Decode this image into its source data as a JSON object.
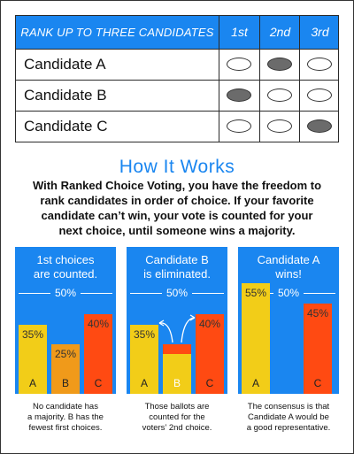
{
  "ballot": {
    "title": "RANK UP TO THREE CANDIDATES",
    "ranks": [
      "1st",
      "2nd",
      "3rd"
    ],
    "candidates": [
      {
        "name": "Candidate A",
        "marked_rank": "2nd"
      },
      {
        "name": "Candidate B",
        "marked_rank": "1st"
      },
      {
        "name": "Candidate C",
        "marked_rank": "3rd"
      }
    ]
  },
  "how": {
    "title": "How It Works",
    "body": "With Ranked Choice Voting, you have the freedom to rank candidates in order of choice. If your favorite candidate can’t win, your vote is counted for your next choice, until someone wins a majority."
  },
  "colors": {
    "blue": "#1a86f0",
    "yellow": "#f2cd18",
    "orange": "#f09a1a",
    "red": "#ff4a12"
  },
  "majority_label": "50%",
  "panels": [
    {
      "title_line1": "1st choices",
      "title_line2": "are counted.",
      "bars": [
        {
          "cat": "A",
          "value": 35,
          "label": "35%"
        },
        {
          "cat": "B",
          "value": 25,
          "label": "25%"
        },
        {
          "cat": "C",
          "value": 40,
          "label": "40%"
        }
      ],
      "caption_line1": "No candidate has",
      "caption_line2": "a majority. B has the",
      "caption_line3": "fewest first choices."
    },
    {
      "title_line1": "Candidate B",
      "title_line2": "is eliminated.",
      "bars": [
        {
          "cat": "A",
          "value": 35,
          "label": "35%"
        },
        {
          "cat": "B",
          "value": 25,
          "label": ""
        },
        {
          "cat": "C",
          "value": 40,
          "label": "40%"
        }
      ],
      "caption_line1": "Those ballots are",
      "caption_line2": "counted for the",
      "caption_line3": "voters’ 2nd choice."
    },
    {
      "title_line1": "Candidate A",
      "title_line2": "wins!",
      "bars": [
        {
          "cat": "A",
          "value": 55,
          "label": "55%"
        },
        {
          "cat": "C",
          "value": 45,
          "label": "45%"
        }
      ],
      "caption_line1": "The consensus is that",
      "caption_line2": "Candidate A would be",
      "caption_line3": "a good representative."
    }
  ]
}
